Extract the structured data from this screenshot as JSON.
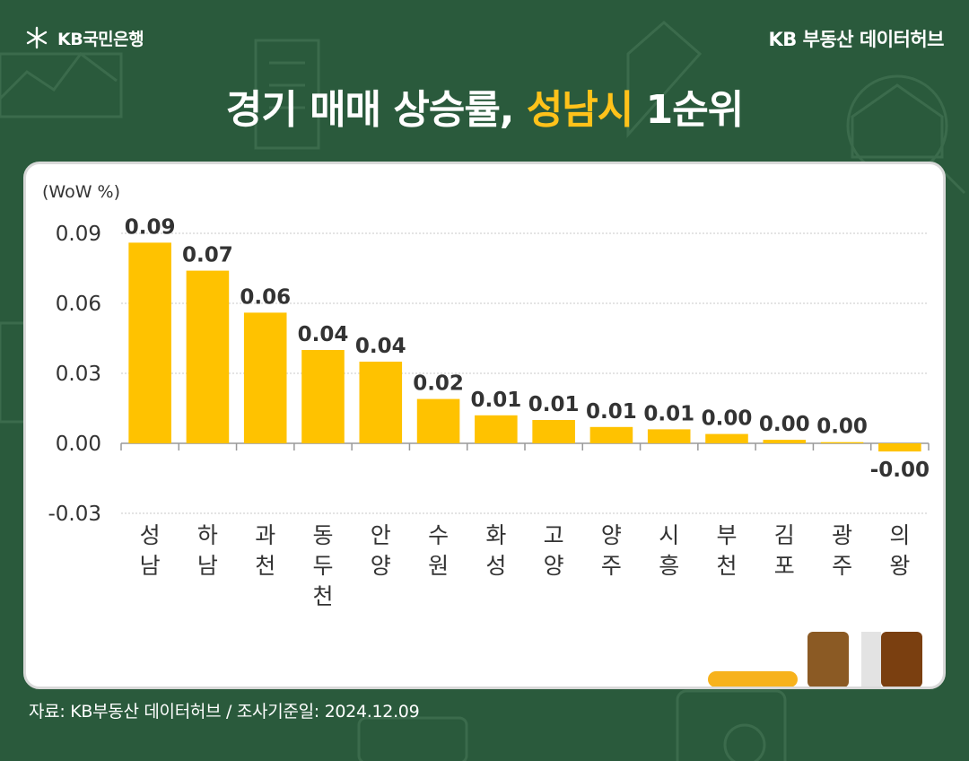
{
  "header": {
    "bank_name": "KB국민은행",
    "hub_name": "KB 부동산  데이터허브"
  },
  "title": {
    "prefix": "경기 매매 상승률, ",
    "highlight": "성남시",
    "suffix": " 1순위"
  },
  "colors": {
    "background": "#2a5a3c",
    "bar": "#ffc200",
    "highlight_text": "#ffc21a",
    "card": "#ffffff"
  },
  "chart_data": {
    "type": "bar",
    "unit_label": "(WoW %)",
    "categories": [
      "성남",
      "하남",
      "과천",
      "동두천",
      "안양",
      "수원",
      "화성",
      "고양",
      "양주",
      "시흥",
      "부천",
      "김포",
      "광주",
      "의왕"
    ],
    "values": [
      0.086,
      0.074,
      0.056,
      0.04,
      0.035,
      0.019,
      0.012,
      0.01,
      0.007,
      0.006,
      0.004,
      0.0015,
      0.0005,
      -0.0035
    ],
    "data_labels": [
      "0.09",
      "0.07",
      "0.06",
      "0.04",
      "0.04",
      "0.02",
      "0.01",
      "0.01",
      "0.01",
      "0.01",
      "0.00",
      "0.00",
      "0.00",
      "-0.00"
    ],
    "y_ticks": [
      0.09,
      0.06,
      0.03,
      0.0,
      -0.03
    ],
    "y_tick_labels": [
      "0.09",
      "0.06",
      "0.03",
      "0.00",
      "-0.03"
    ],
    "ylim": [
      -0.03,
      0.09
    ],
    "grid": true,
    "legend": "none"
  },
  "footer": {
    "source": "자료: KB부동산 데이터허브 / 조사기준일: 2024.12.09"
  }
}
